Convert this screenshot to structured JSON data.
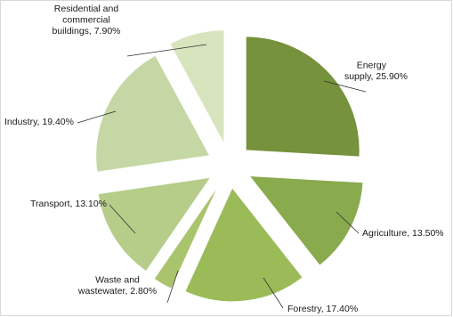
{
  "chart_data": {
    "type": "pie",
    "exploded": true,
    "slices": [
      {
        "label_lines": [
          "Energy",
          "supply, 25.90%"
        ],
        "category": "Energy supply",
        "value": 25.9,
        "color": "#76923c"
      },
      {
        "label_lines": [
          "Agriculture, 13.50%"
        ],
        "category": "Agriculture",
        "value": 13.5,
        "color": "#8aaa4e"
      },
      {
        "label_lines": [
          "Forestry, 17.40%"
        ],
        "category": "Forestry",
        "value": 17.4,
        "color": "#9bbb59"
      },
      {
        "label_lines": [
          "Waste and",
          "wastewater, 2.80%"
        ],
        "category": "Waste and wastewater",
        "value": 2.8,
        "color": "#a9c46c"
      },
      {
        "label_lines": [
          "Transport, 13.10%"
        ],
        "category": "Transport",
        "value": 13.1,
        "color": "#b6cd8a"
      },
      {
        "label_lines": [
          "Industry, 19.40%"
        ],
        "category": "Industry",
        "value": 19.4,
        "color": "#c5d7a5"
      },
      {
        "label_lines": [
          "Residential and",
          "commercial",
          "buildings, 7.90%"
        ],
        "category": "Residential and commercial buildings",
        "value": 7.9,
        "color": "#d7e4bd"
      }
    ]
  }
}
